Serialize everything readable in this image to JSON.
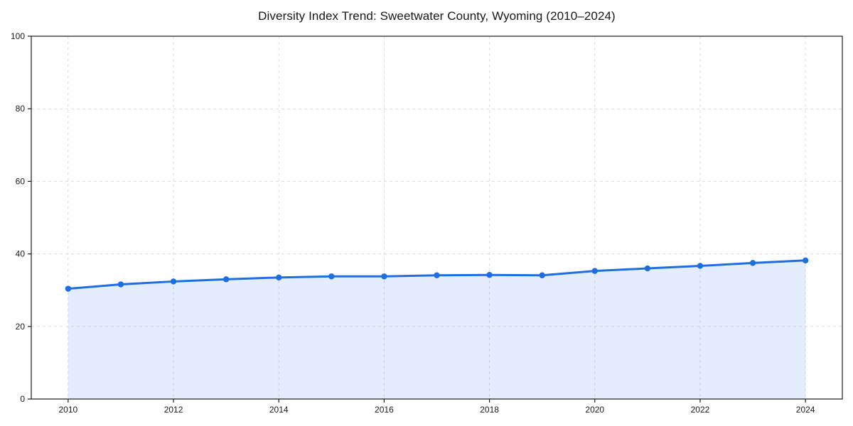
{
  "page": {
    "background": "#ffffff"
  },
  "chart_data": {
    "type": "area",
    "title": "Diversity Index Trend: Sweetwater County, Wyoming (2010–2024)",
    "xlabel": "",
    "ylabel": "",
    "x": [
      2010,
      2011,
      2012,
      2013,
      2014,
      2015,
      2016,
      2017,
      2018,
      2019,
      2020,
      2021,
      2022,
      2023,
      2024
    ],
    "series": [
      {
        "name": "Diversity Index",
        "values": [
          30.4,
          31.6,
          32.4,
          33.0,
          33.5,
          33.8,
          33.8,
          34.1,
          34.2,
          34.1,
          35.3,
          36.0,
          36.7,
          37.5,
          38.2
        ]
      }
    ],
    "ylim": [
      0,
      100
    ],
    "xlim": [
      2009.3,
      2024.7
    ],
    "yticks": [
      0,
      20,
      40,
      60,
      80,
      100
    ],
    "xticks": [
      2010,
      2012,
      2014,
      2016,
      2018,
      2020,
      2022,
      2024
    ],
    "grid": true,
    "grid_style": "dashed",
    "legend_position": "none",
    "colors": {
      "line": "#1e6ee1",
      "marker": "#1e6ee1",
      "fill": "rgba(30,110,225,0.12)",
      "gridline": "#dcdcdc",
      "axis": "#1a1a1a",
      "tick_label": "#1a1a1a",
      "title": "#171717"
    }
  }
}
